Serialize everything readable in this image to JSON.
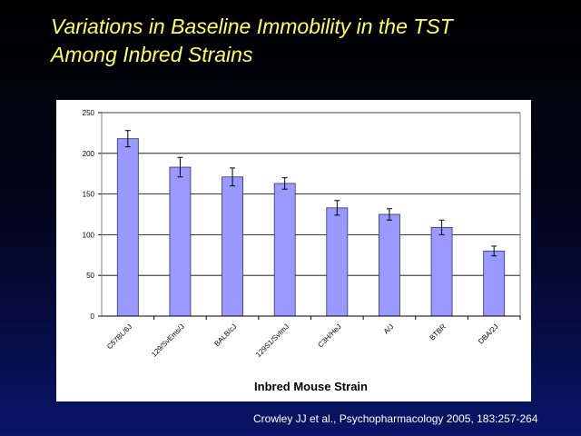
{
  "slide": {
    "title_line1": "Variations in Baseline Immobility in the TST",
    "title_line2": "Among Inbred Strains",
    "citation": "Crowley JJ et al., Psychopharmacology 2005, 183:257-264"
  },
  "colors": {
    "title": "#ffff66",
    "bar_fill": "#9999ff",
    "bar_stroke": "#333366",
    "plot_background": "#ffffff",
    "gridline": "#000000"
  },
  "chart_data": {
    "type": "bar",
    "title": "",
    "xlabel": "Inbred Mouse Strain",
    "ylabel": "",
    "categories": [
      "C57BL/6J",
      "129/SvEms/J",
      "BALB/cJ",
      "129S1/SvImJ",
      "C3H/HeJ",
      "A/J",
      "BTBR",
      "DBA/2J"
    ],
    "values": [
      218,
      183,
      171,
      163,
      133,
      125,
      109,
      80
    ],
    "errors": [
      10,
      12,
      11,
      7,
      9,
      7,
      9,
      6
    ],
    "ylim": [
      0,
      250
    ],
    "yticks": [
      0,
      50,
      100,
      150,
      200,
      250
    ],
    "grid": true,
    "legend": "none"
  }
}
